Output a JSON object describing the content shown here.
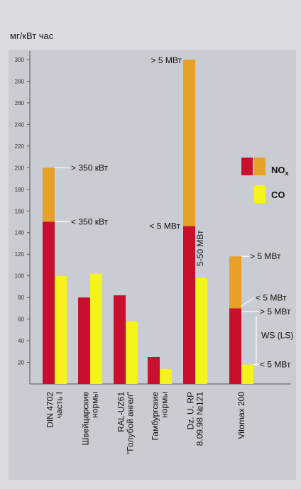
{
  "chart_data": {
    "type": "bar",
    "ylabel": "мг/кВт час",
    "ylim": [
      0,
      300
    ],
    "yticks": [
      20,
      40,
      60,
      80,
      100,
      120,
      140,
      160,
      180,
      200,
      220,
      240,
      260,
      280,
      300
    ],
    "grid": false,
    "legend_position": "right",
    "legend": [
      {
        "label": "NOx",
        "label_main": "NO",
        "label_sub": "x",
        "colors": [
          "#c8102e",
          "#e8a128"
        ]
      },
      {
        "label": "CO",
        "colors": [
          "#f6f21c"
        ]
      }
    ],
    "series_colors": {
      "nox_lower": "#c8102e",
      "nox_upper": "#e8a128",
      "co": "#f6f21c"
    },
    "groups": [
      {
        "category": [
          "DIN 4702",
          "часть I"
        ],
        "nox_lower": 150,
        "nox_upper": 200,
        "co": 100,
        "annotations": [
          {
            "text": "> 350 кВт",
            "value": 200
          },
          {
            "text": "< 350 кВт",
            "value": 150
          }
        ]
      },
      {
        "category": [
          "Швейцарские",
          "нормы"
        ],
        "nox_lower": 80,
        "nox_upper": null,
        "co": 102,
        "annotations": []
      },
      {
        "category": [
          "RAL-UZ61",
          "\"Голубой ангел\""
        ],
        "nox_lower": 82,
        "nox_upper": null,
        "co": 58,
        "annotations": []
      },
      {
        "category": [
          "Гамбургские",
          "нормы"
        ],
        "nox_lower": 25,
        "nox_upper": null,
        "co": 14,
        "annotations": []
      },
      {
        "category": [
          "Dz. U. RP",
          "8.09.98 №121"
        ],
        "nox_lower": 146,
        "nox_upper": 300,
        "co": 98,
        "annotations": [
          {
            "text": "> 5 МВт",
            "value": 300
          },
          {
            "text": "< 5 МВт",
            "value": 146
          },
          {
            "text": "5-50 МВт",
            "value": 98,
            "vertical": true
          }
        ]
      },
      {
        "category": [
          "Vitomax 200"
        ],
        "nox_lower": 70,
        "nox_upper": 118,
        "co": 18,
        "annotations": [
          {
            "text": "> 5 МВт",
            "value": 118
          },
          {
            "text": "< 5 МВт",
            "value": 72
          },
          {
            "text": "> 5 МВт",
            "value": 67
          },
          {
            "text": "WS (LS)",
            "value": 45
          },
          {
            "text": "< 5 МВт",
            "value": 18
          }
        ]
      }
    ]
  }
}
